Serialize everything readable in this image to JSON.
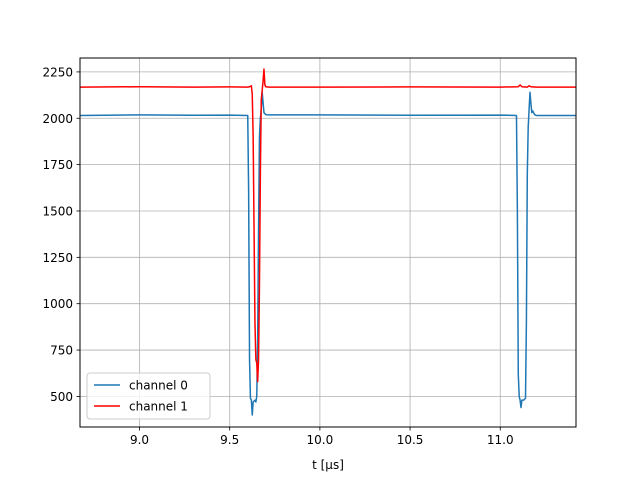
{
  "chart_data": {
    "type": "line",
    "title": "",
    "xlabel": "t [µs]",
    "ylabel": "",
    "xlim": [
      8.67,
      11.42
    ],
    "ylim": [
      335,
      2325
    ],
    "grid": true,
    "legend_position": "lower-left",
    "xticks": [
      9.0,
      9.5,
      10.0,
      10.5,
      11.0
    ],
    "xtick_labels": [
      "9.0",
      "9.5",
      "10.0",
      "10.5",
      "11.0"
    ],
    "yticks": [
      500,
      750,
      1000,
      1250,
      1500,
      1750,
      2000,
      2250
    ],
    "ytick_labels": [
      "500",
      "750",
      "1000",
      "1250",
      "1500",
      "1750",
      "2000",
      "2250"
    ],
    "series": [
      {
        "name": "channel 0",
        "color": "#1f77b4",
        "x": [
          8.67,
          9.0,
          9.3,
          9.5,
          9.6,
          9.605,
          9.61,
          9.615,
          9.62,
          9.625,
          9.63,
          9.64,
          9.645,
          9.65,
          9.655,
          9.66,
          9.665,
          9.67,
          9.675,
          9.68,
          9.69,
          9.7,
          9.71,
          10.0,
          10.5,
          11.0,
          11.09,
          11.095,
          11.1,
          11.105,
          11.11,
          11.115,
          11.12,
          11.13,
          11.14,
          11.145,
          11.15,
          11.155,
          11.16,
          11.165,
          11.17,
          11.175,
          11.18,
          11.19,
          11.2,
          11.25,
          11.42
        ],
        "y": [
          2015,
          2018,
          2016,
          2017,
          2015,
          1600,
          700,
          490,
          480,
          400,
          470,
          480,
          470,
          500,
          800,
          1400,
          1900,
          2000,
          2050,
          2140,
          2030,
          2020,
          2018,
          2018,
          2016,
          2017,
          2015,
          1500,
          620,
          500,
          480,
          440,
          480,
          480,
          490,
          900,
          1700,
          1950,
          2050,
          2140,
          2080,
          2030,
          2040,
          2020,
          2015,
          2015,
          2015
        ]
      },
      {
        "name": "channel 1",
        "color": "#ff0000",
        "x": [
          8.67,
          9.0,
          9.3,
          9.5,
          9.6,
          9.61,
          9.62,
          9.625,
          9.63,
          9.635,
          9.64,
          9.645,
          9.65,
          9.655,
          9.66,
          9.665,
          9.67,
          9.675,
          9.68,
          9.685,
          9.69,
          9.695,
          9.7,
          9.72,
          10.0,
          10.5,
          11.0,
          11.1,
          11.11,
          11.12,
          11.15,
          11.16,
          11.17,
          11.2,
          11.42
        ],
        "y": [
          2168,
          2170,
          2168,
          2169,
          2168,
          2170,
          2175,
          2130,
          1900,
          1400,
          900,
          700,
          680,
          580,
          700,
          1100,
          1700,
          2100,
          2150,
          2200,
          2265,
          2180,
          2170,
          2168,
          2168,
          2169,
          2168,
          2170,
          2180,
          2170,
          2168,
          2175,
          2170,
          2168,
          2168
        ]
      }
    ]
  }
}
